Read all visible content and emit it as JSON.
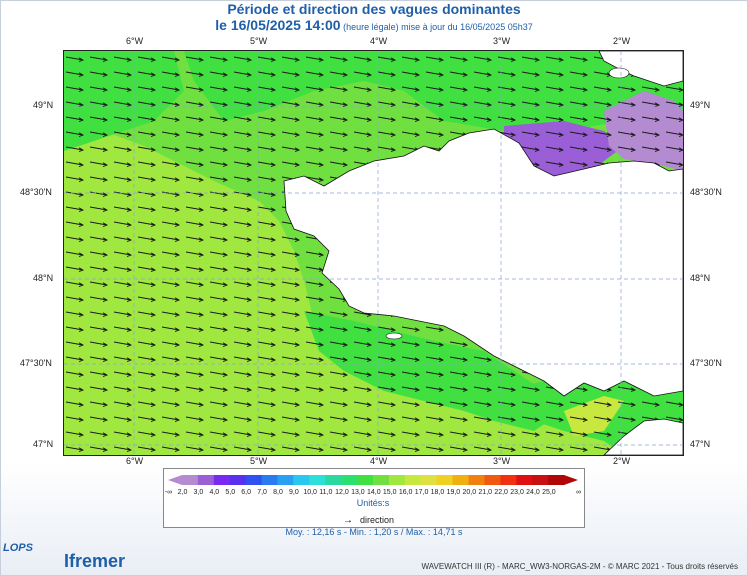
{
  "header": {
    "title_line1": "Période et direction des vagues dominantes",
    "title_date": "le 16/05/2025 14:00",
    "title_suffix": " (heure légale) mise à jour du 16/05/2025 05h37"
  },
  "axes": {
    "lon_labels": [
      "6°W",
      "5°W",
      "4°W",
      "3°W",
      "2°W"
    ],
    "lat_labels": [
      "49°N",
      "48°30'N",
      "48°N",
      "47°30'N",
      "47°N"
    ]
  },
  "legend": {
    "labels": [
      "-∞",
      "2,0",
      "3,0",
      "4,0",
      "5,0",
      "6,0",
      "7,0",
      "8,0",
      "9,0",
      "10,0",
      "11,0",
      "12,0",
      "13,0",
      "14,0",
      "15,0",
      "16,0",
      "17,0",
      "18,0",
      "19,0",
      "20,0",
      "21,0",
      "22,0",
      "23,0",
      "24,0",
      "25,0",
      "∞"
    ],
    "colors": [
      "#b48ad0",
      "#9a5fd6",
      "#7a2af0",
      "#5a30f0",
      "#3050f0",
      "#2a7af0",
      "#2aa0f0",
      "#2ac8f0",
      "#2ae0d8",
      "#2ad8a0",
      "#2ae070",
      "#40e040",
      "#70e040",
      "#a0e840",
      "#c8e840",
      "#e0e040",
      "#f0d020",
      "#f0b010",
      "#f08010",
      "#f05a10",
      "#f03010",
      "#e01010",
      "#c81010",
      "#b00808"
    ],
    "units": "Unités:s",
    "direction_label": "direction"
  },
  "stats": {
    "text": "Moy. : 12,16 s   -   Min. : 1,20 s / Max. : 14,71 s"
  },
  "footer": {
    "copyright": "WAVEWATCH III (R) - MARC_WW3-NORGAS-2M - © MARC 2021 - Tous droits réservés",
    "logo_lops": "LOPS",
    "logo_ifremer": "Ifremer"
  },
  "map": {
    "colors": {
      "green_10": "#2ae070",
      "green_11": "#40e040",
      "green_12": "#70e040",
      "green_13": "#a0e840",
      "yellow_14": "#c8e840",
      "purple_2": "#b48ad0",
      "purple_3": "#9a5fd6",
      "land": "#ffffff"
    },
    "wave_direction": "east"
  }
}
